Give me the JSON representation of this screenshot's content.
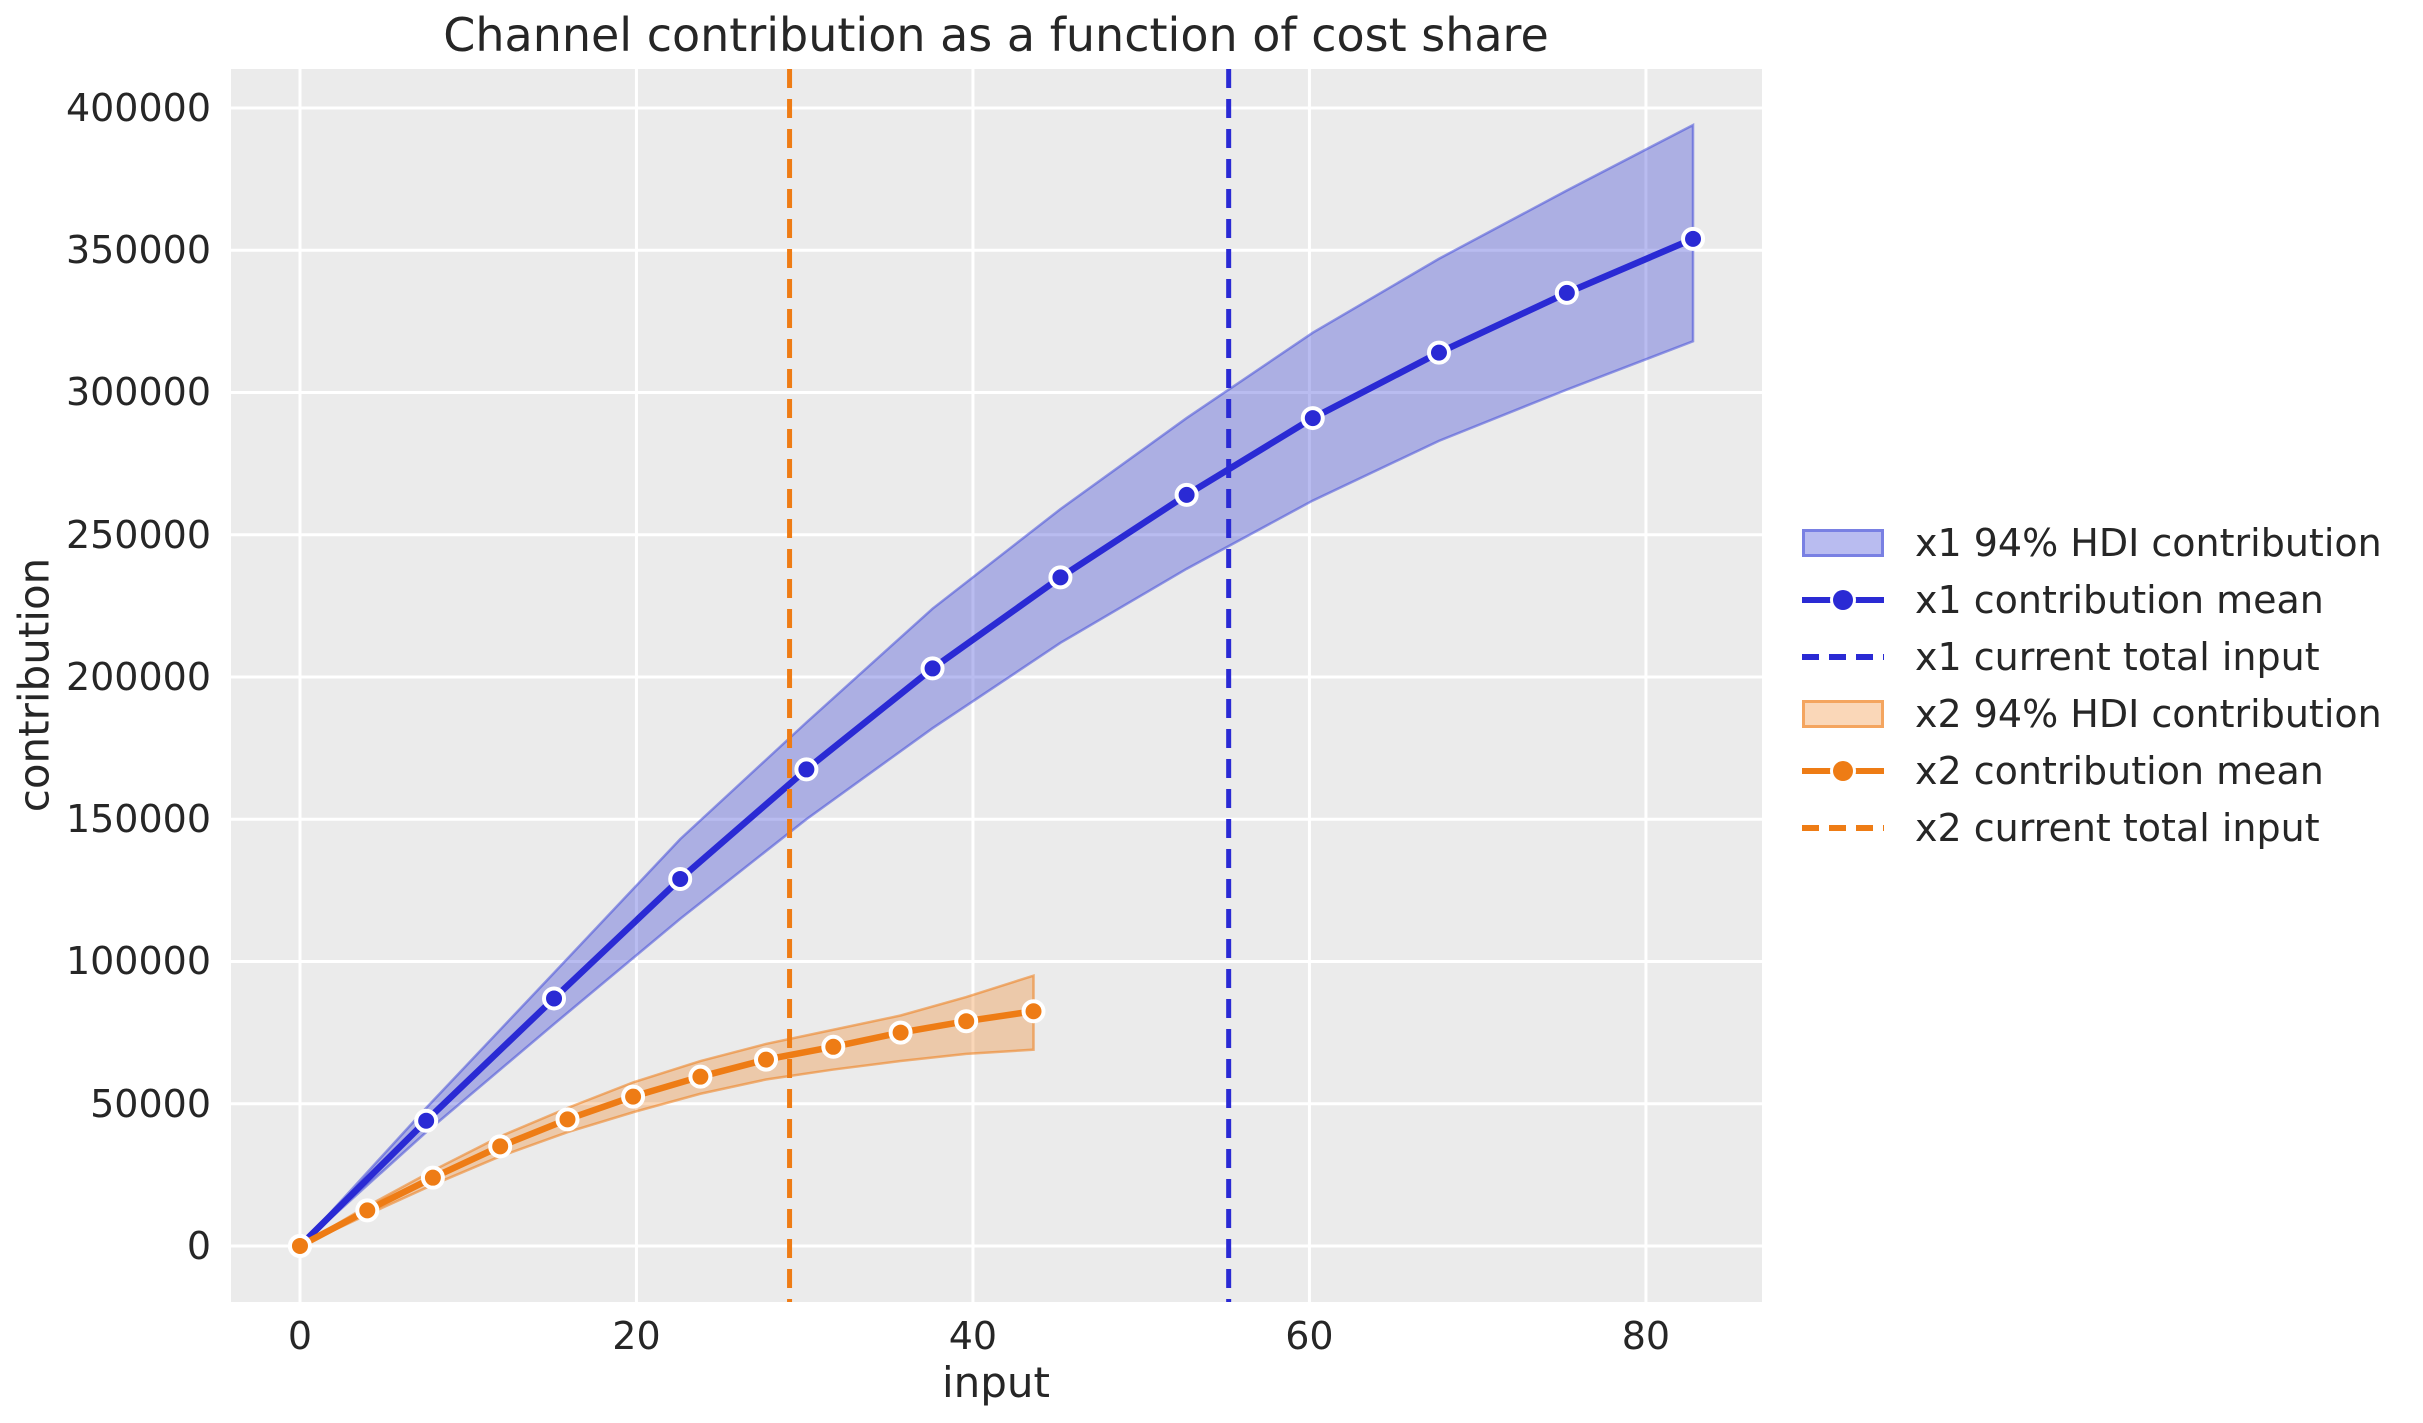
{
  "title": "Channel contribution as a function of cost share",
  "colors": {
    "figure_bg": "#ffffff",
    "plot_bg": "#ebebeb",
    "grid": "#ffffff",
    "text": "#262626",
    "x1_line": "#2a2ad4",
    "x1_band_fill": "rgba(70,78,216,0.38)",
    "x1_band_edge": "rgba(70,78,216,0.55)",
    "x2_line": "#ee7c15",
    "x2_band_fill": "rgba(238,124,21,0.30)",
    "x2_band_edge": "rgba(238,124,21,0.55)"
  },
  "legend": {
    "position": "right of plot",
    "items": [
      {
        "label": "x1 94% HDI contribution",
        "type": "band",
        "series": "x1"
      },
      {
        "label": "x1 contribution mean",
        "type": "line",
        "series": "x1"
      },
      {
        "label": "x1 current total input",
        "type": "dash",
        "series": "x1"
      },
      {
        "label": "x2 94% HDI contribution",
        "type": "band",
        "series": "x2"
      },
      {
        "label": "x2 contribution mean",
        "type": "line",
        "series": "x2"
      },
      {
        "label": "x2 current total input",
        "type": "dash",
        "series": "x2"
      }
    ]
  },
  "chart_data": {
    "type": "line",
    "title": "Channel contribution as a function of cost share",
    "xlabel": "input",
    "ylabel": "contribution",
    "xlim": [
      -4.1,
      86.9
    ],
    "ylim": [
      -19700,
      413700
    ],
    "xticks": [
      0,
      20,
      40,
      60,
      80
    ],
    "yticks": [
      0,
      50000,
      100000,
      150000,
      200000,
      250000,
      300000,
      350000,
      400000
    ],
    "grid": true,
    "hdi_probability": "94%",
    "series": [
      {
        "name": "x1",
        "mean_label": "x1 contribution mean",
        "hdi_label": "x1 94% HDI contribution",
        "vline_label": "x1 current total input",
        "current_total_input": 55.2,
        "x": [
          0,
          7.5,
          15.1,
          22.6,
          30.1,
          37.6,
          45.2,
          52.7,
          60.2,
          67.7,
          75.3,
          82.8
        ],
        "mean": [
          0,
          44000,
          87000,
          129000,
          167500,
          203000,
          235000,
          264000,
          291000,
          314000,
          335000,
          354000
        ],
        "hdi_lower": [
          0,
          40000,
          78000,
          115000,
          150000,
          182000,
          212000,
          238000,
          262000,
          283000,
          301000,
          318000
        ],
        "hdi_upper": [
          0,
          48500,
          96000,
          143000,
          184000,
          224000,
          259000,
          291000,
          321000,
          347000,
          371000,
          394000
        ]
      },
      {
        "name": "x2",
        "mean_label": "x2 contribution mean",
        "hdi_label": "x2 94% HDI contribution",
        "vline_label": "x2 current total input",
        "current_total_input": 29.1,
        "x": [
          0,
          4.0,
          7.9,
          11.9,
          15.9,
          19.8,
          23.8,
          27.7,
          31.7,
          35.7,
          39.6,
          43.6
        ],
        "mean": [
          0,
          12500,
          24000,
          35000,
          44500,
          52500,
          59500,
          65500,
          70000,
          75000,
          79000,
          82500
        ],
        "hdi_lower": [
          0,
          11000,
          21500,
          31500,
          40000,
          47000,
          53500,
          58500,
          62000,
          65000,
          67500,
          69000
        ],
        "hdi_upper": [
          0,
          14000,
          26500,
          38500,
          48500,
          57500,
          65000,
          71000,
          76000,
          81000,
          87500,
          95000
        ]
      }
    ]
  }
}
